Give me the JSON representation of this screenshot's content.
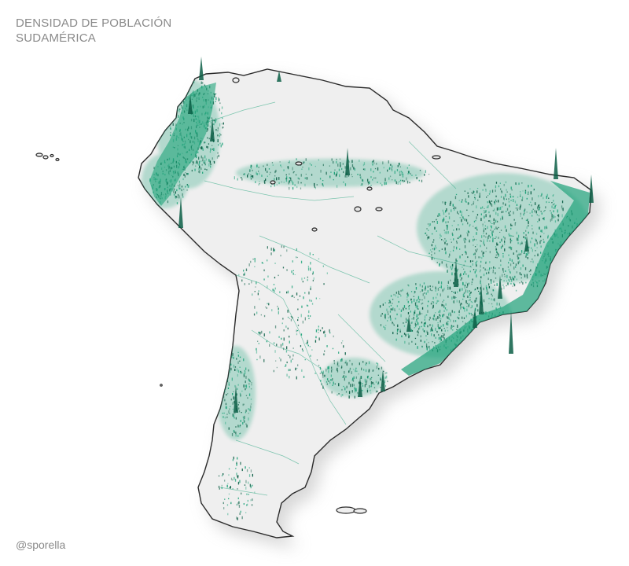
{
  "title": {
    "line1": "DENSIDAD DE POBLACIÓN",
    "line2": "SUDAMÉRICA"
  },
  "credit": "@sporella",
  "colors": {
    "text": "#8a8a8a",
    "land": "#efefef",
    "density": "#1fa37a",
    "spike": "#0b5e45",
    "outline": "#2a2a2a",
    "shadow": "#cfcfcf"
  }
}
